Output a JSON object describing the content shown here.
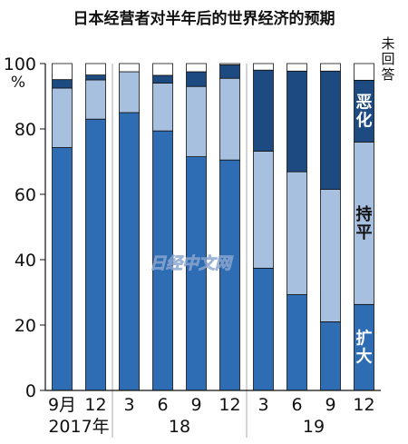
{
  "chart_data": {
    "type": "bar",
    "stacked": true,
    "title": "日本经营者对半年后的世界经济的预期",
    "ylim": [
      0,
      100
    ],
    "yticks": [
      0,
      20,
      40,
      60,
      80,
      100
    ],
    "yunit": "%",
    "categories": [
      "9月",
      "12",
      "3",
      "6",
      "9",
      "12",
      "3",
      "6",
      "9",
      "12"
    ],
    "year_labels": [
      "2017年",
      "18",
      "19"
    ],
    "year_groups": [
      [
        0,
        1
      ],
      [
        2,
        5
      ],
      [
        6,
        9
      ]
    ],
    "series": [
      {
        "name": "扩大",
        "color": "#2e6db4",
        "values": [
          74.3,
          83,
          85,
          79.4,
          71.5,
          70.5,
          37.4,
          29.3,
          21,
          26.3
        ]
      },
      {
        "name": "持平",
        "color": "#a7c0e0",
        "values": [
          18.2,
          12,
          12.5,
          14.6,
          21.5,
          25,
          35.8,
          37.6,
          40.5,
          49.7
        ]
      },
      {
        "name": "恶化",
        "color": "#1e4a82",
        "values": [
          2.6,
          1.5,
          0,
          2.4,
          4.5,
          4.1,
          24.8,
          30.8,
          36.2,
          18.9
        ]
      },
      {
        "name": "未回答",
        "color": "#ffffff",
        "values": [
          4.9,
          3.5,
          2.5,
          3.6,
          2.5,
          0.4,
          2,
          2.3,
          2.3,
          5.1
        ]
      }
    ],
    "label_no_answer": "未回答",
    "watermark": "日经中文网"
  }
}
